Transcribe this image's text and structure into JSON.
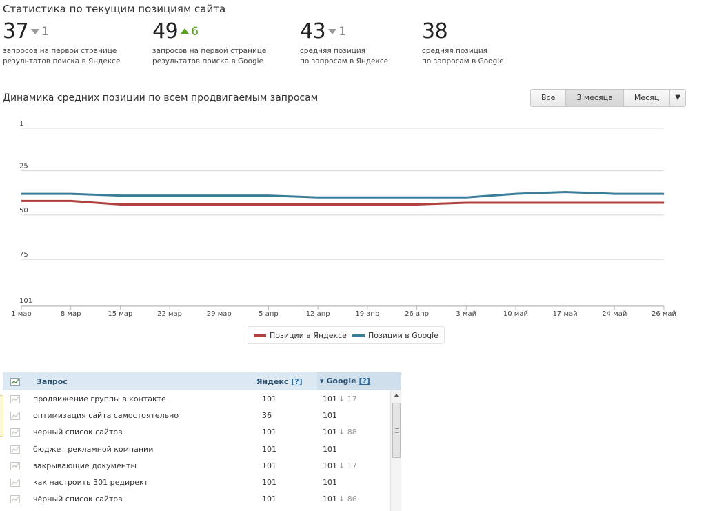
{
  "page_title": "Статистика по текущим позициям сайта",
  "stats": [
    {
      "value": "37",
      "delta": "1",
      "direction": "down",
      "line1": "запросов на первой странице",
      "line2": "результатов поиска в Яндексе"
    },
    {
      "value": "49",
      "delta": "6",
      "direction": "up",
      "line1": "запросов на первой странице",
      "line2": "результатов поиска в Google"
    },
    {
      "value": "43",
      "delta": "1",
      "direction": "down",
      "line1": "средняя позиция",
      "line2": "по запросам в Яндексе"
    },
    {
      "value": "38",
      "delta": "",
      "direction": "none",
      "line1": "средняя позиция",
      "line2": "по запросам в Google"
    }
  ],
  "chart_title": "Динамика средних позиций по всем продвигаемым запросам",
  "range_buttons": {
    "all": "Все",
    "three_months": "3 месяца",
    "month": "Месяц",
    "dropdown": "▼"
  },
  "colors": {
    "yandex": "#b0413e",
    "google": "#3b7d98",
    "grid": "#d8d8d8",
    "header_bg": "#dde9f2"
  },
  "chart_data": {
    "type": "line",
    "title": "Динамика средних позиций по всем продвигаемым запросам",
    "categories": [
      "1 мар",
      "8 мар",
      "15 мар",
      "22 мар",
      "29 мар",
      "5 апр",
      "12 апр",
      "19 апр",
      "26 апр",
      "3 май",
      "10 май",
      "17 май",
      "24 май",
      "26 май"
    ],
    "y_ticks": [
      "1",
      "25",
      "50",
      "75",
      "101"
    ],
    "ylim": [
      1,
      101
    ],
    "y_reversed": true,
    "series": [
      {
        "name": "Позиции в Яндексе",
        "color": "#b0413e",
        "values": [
          42,
          42,
          44,
          44,
          44,
          44,
          44,
          44,
          44,
          43,
          43,
          43,
          43,
          43
        ]
      },
      {
        "name": "Позиции в Google",
        "color": "#3b7d98",
        "values": [
          38,
          38,
          39,
          39,
          39,
          39,
          40,
          40,
          40,
          40,
          38,
          37,
          38,
          38
        ]
      }
    ],
    "legend_position": "bottom-center",
    "grid": true
  },
  "table": {
    "head": {
      "query": "Запрос",
      "yandex": "Яндекс",
      "google": "Google",
      "help": "[?]",
      "sort_mark": "▾"
    },
    "rows": [
      {
        "query": "продвижение группы в контакте",
        "yandex": "101",
        "google": "101",
        "change": "↓ 17"
      },
      {
        "query": "оптимизация сайта самостоятельно",
        "yandex": "36",
        "google": "101",
        "change": ""
      },
      {
        "query": "черный список сайтов",
        "yandex": "101",
        "google": "101",
        "change": "↓ 88"
      },
      {
        "query": "бюджет рекламной компании",
        "yandex": "101",
        "google": "101",
        "change": ""
      },
      {
        "query": "закрывающие документы",
        "yandex": "101",
        "google": "101",
        "change": "↓ 17"
      },
      {
        "query": "как настроить 301 редирект",
        "yandex": "101",
        "google": "101",
        "change": ""
      },
      {
        "query": "чёрный список сайтов",
        "yandex": "101",
        "google": "101",
        "change": "↓ 86"
      }
    ]
  }
}
